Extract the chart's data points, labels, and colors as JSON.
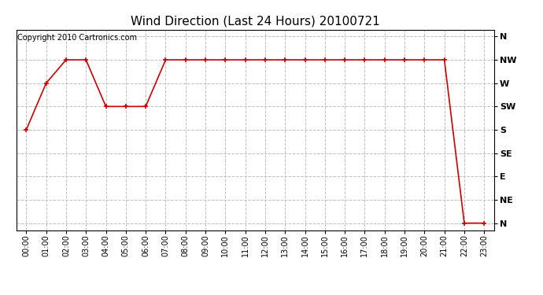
{
  "title": "Wind Direction (Last 24 Hours) 20100721",
  "copyright": "Copyright 2010 Cartronics.com",
  "x_labels": [
    "00:00",
    "01:00",
    "02:00",
    "03:00",
    "04:00",
    "05:00",
    "06:00",
    "07:00",
    "08:00",
    "09:00",
    "10:00",
    "11:00",
    "12:00",
    "13:00",
    "14:00",
    "15:00",
    "16:00",
    "17:00",
    "18:00",
    "19:00",
    "20:00",
    "21:00",
    "22:00",
    "23:00"
  ],
  "y_tick_vals": [
    0,
    1,
    2,
    3,
    4,
    5,
    6,
    7,
    8
  ],
  "y_tick_labels": [
    "N",
    "NE",
    "E",
    "SE",
    "S",
    "SW",
    "W",
    "NW",
    "N"
  ],
  "wind_data": [
    4,
    6,
    7,
    7,
    5,
    5,
    5,
    7,
    7,
    7,
    7,
    7,
    7,
    7,
    7,
    7,
    7,
    7,
    7,
    7,
    7,
    7,
    0,
    0
  ],
  "line_color": "#cc0000",
  "marker": "+",
  "marker_size": 5,
  "marker_linewidth": 1.2,
  "line_width": 1.2,
  "grid_color": "#c0c0c0",
  "bg_color": "#ffffff",
  "title_fontsize": 11,
  "copyright_fontsize": 7,
  "tick_fontsize": 7,
  "ytick_fontsize": 8,
  "ylim": [
    -0.3,
    8.3
  ],
  "xlim": [
    -0.5,
    23.5
  ]
}
